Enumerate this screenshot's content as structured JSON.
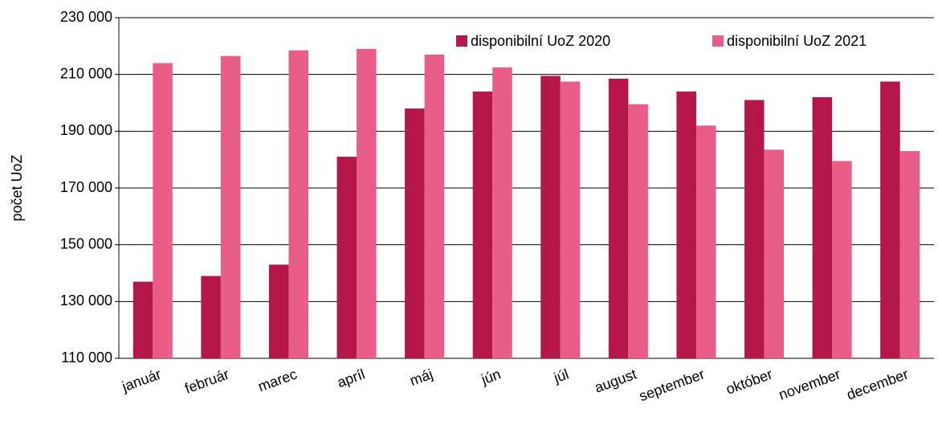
{
  "chart_data": {
    "type": "bar",
    "y_label": "počet UoZ",
    "categories": [
      "január",
      "február",
      "marec",
      "apríl",
      "máj",
      "jún",
      "júl",
      "august",
      "september",
      "október",
      "november",
      "december"
    ],
    "series": [
      {
        "name": "disponibilní UoZ 2020",
        "color": "#b5174b",
        "values": [
          137000,
          139000,
          143000,
          181000,
          198000,
          204000,
          209500,
          208500,
          204000,
          201000,
          202000,
          207500
        ]
      },
      {
        "name": "disponibilní UoZ 2021",
        "color": "#e95e88",
        "values": [
          214000,
          216500,
          218500,
          219000,
          217000,
          212500,
          207500,
          199500,
          192000,
          183500,
          179500,
          183000
        ]
      }
    ],
    "ylim": [
      110000,
      230000
    ],
    "yticks": [
      {
        "value": 110000,
        "label": "110 000"
      },
      {
        "value": 130000,
        "label": "130 000"
      },
      {
        "value": 150000,
        "label": "150 000"
      },
      {
        "value": 170000,
        "label": "170 000"
      },
      {
        "value": 190000,
        "label": "190 000"
      },
      {
        "value": 210000,
        "label": "210 000"
      },
      {
        "value": 230000,
        "label": "230 000"
      }
    ],
    "grid": true,
    "legend": "top"
  }
}
